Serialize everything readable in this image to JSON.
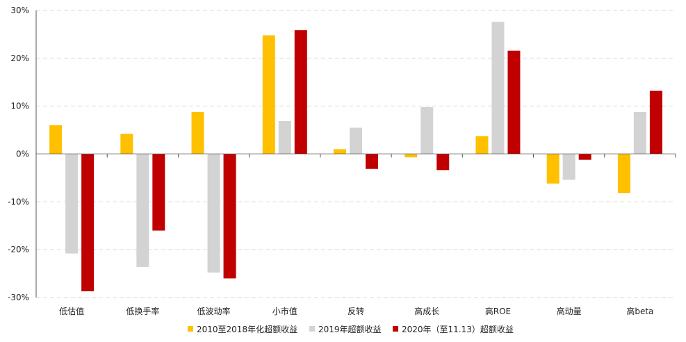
{
  "chart_data": {
    "type": "bar",
    "categories": [
      "低估值",
      "低换手率",
      "低波动率",
      "小市值",
      "反转",
      "高成长",
      "高ROE",
      "高动量",
      "高beta"
    ],
    "series": [
      {
        "name": "2010至2018年化超额收益",
        "color": "#FFC000",
        "values": [
          6.0,
          4.2,
          8.8,
          24.8,
          1.0,
          -0.7,
          3.7,
          -6.2,
          -8.2
        ]
      },
      {
        "name": "2019年超额收益",
        "color": "#D3D3D3",
        "values": [
          -20.8,
          -23.6,
          -24.8,
          6.9,
          5.5,
          9.8,
          27.6,
          -5.4,
          8.8
        ]
      },
      {
        "name": "2020年（至11.13）超额收益",
        "color": "#C00000",
        "values": [
          -28.7,
          -16.0,
          -26.0,
          25.9,
          -3.1,
          -3.4,
          21.6,
          -1.2,
          13.2
        ]
      }
    ],
    "yticks": [
      30,
      20,
      10,
      0,
      -10,
      -20,
      -30
    ],
    "ytick_labels": [
      "30%",
      "20%",
      "10%",
      "0%",
      "-10%",
      "-20%",
      "-30%"
    ],
    "ylim": [
      -30,
      30
    ],
    "grid": true,
    "legend_position": "bottom"
  }
}
